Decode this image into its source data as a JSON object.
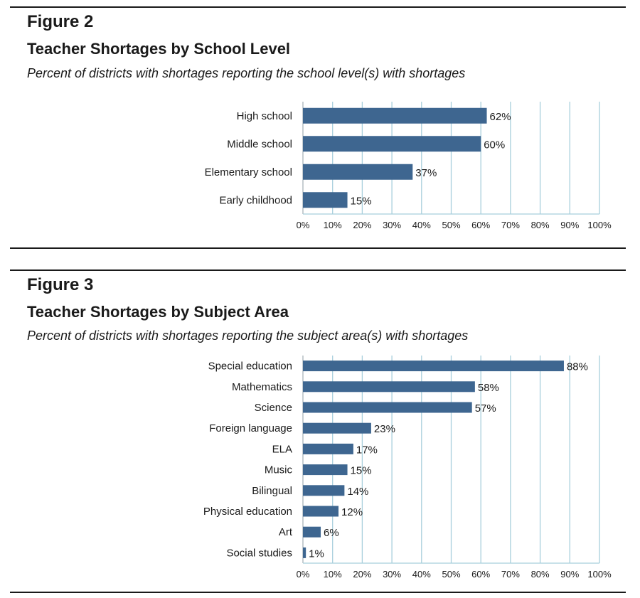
{
  "colors": {
    "bar": "#3e6690",
    "grid": "#a8cfdc",
    "rule": "#1a1a1a"
  },
  "chart_data": [
    {
      "type": "bar",
      "orientation": "horizontal",
      "figure_label": "Figure 2",
      "title": "Teacher Shortages by School Level",
      "subtitle": "Percent of districts with shortages reporting the school level(s) with shortages",
      "categories": [
        "High school",
        "Middle school",
        "Elementary school",
        "Early childhood"
      ],
      "values": [
        62,
        60,
        37,
        15
      ],
      "value_labels": [
        "62%",
        "60%",
        "37%",
        "15%"
      ],
      "xlim": [
        0,
        100
      ],
      "ticks": [
        "0%",
        "10%",
        "20%",
        "30%",
        "40%",
        "50%",
        "60%",
        "70%",
        "80%",
        "90%",
        "100%"
      ],
      "grid": true
    },
    {
      "type": "bar",
      "orientation": "horizontal",
      "figure_label": "Figure 3",
      "title": "Teacher Shortages by Subject Area",
      "subtitle": "Percent of districts with shortages reporting the subject area(s) with shortages",
      "categories": [
        "Special education",
        "Mathematics",
        "Science",
        "Foreign language",
        "ELA",
        "Music",
        "Bilingual",
        "Physical education",
        "Art",
        "Social studies"
      ],
      "values": [
        88,
        58,
        57,
        23,
        17,
        15,
        14,
        12,
        6,
        1
      ],
      "value_labels": [
        "88%",
        "58%",
        "57%",
        "23%",
        "17%",
        "15%",
        "14%",
        "12%",
        "6%",
        "1%"
      ],
      "xlim": [
        0,
        100
      ],
      "ticks": [
        "0%",
        "10%",
        "20%",
        "30%",
        "40%",
        "50%",
        "60%",
        "70%",
        "80%",
        "90%",
        "100%"
      ],
      "grid": true
    }
  ]
}
